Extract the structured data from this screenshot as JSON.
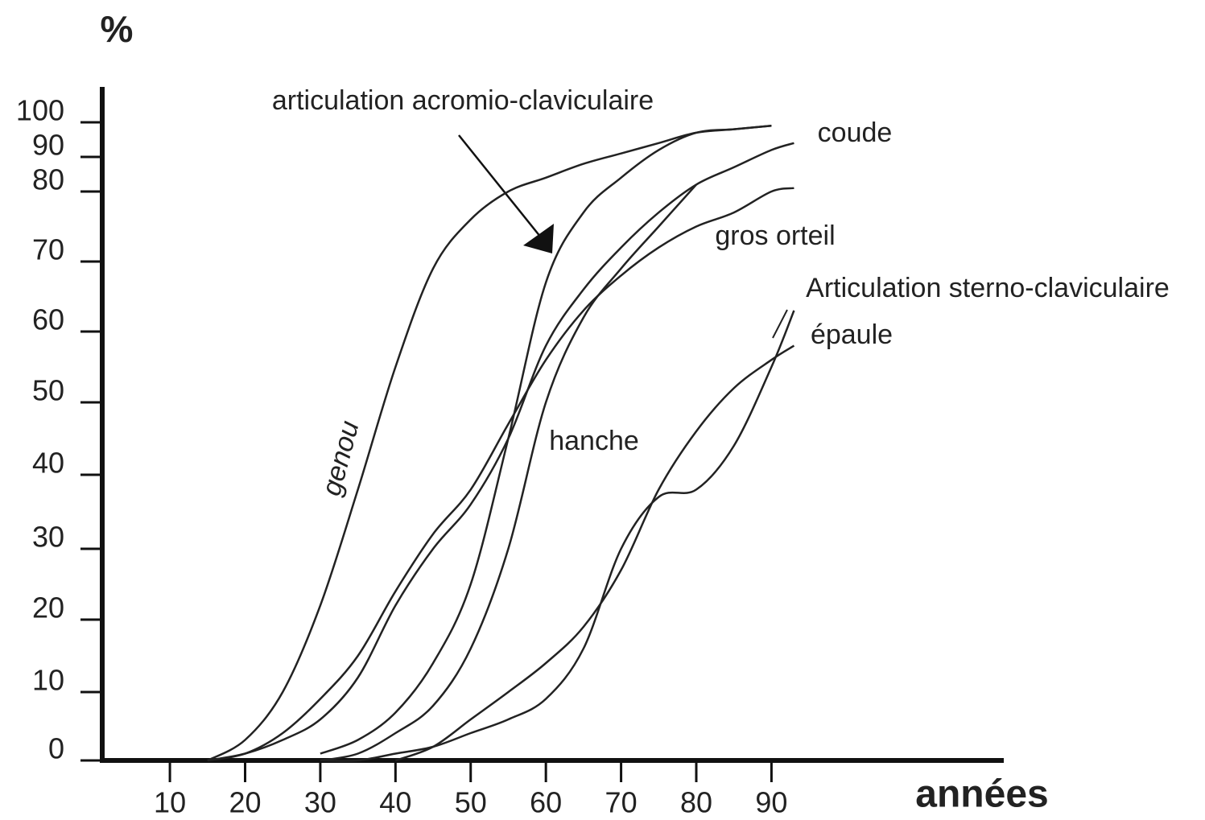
{
  "chart_data": {
    "type": "line",
    "ylabel": "%",
    "xlabel": "années",
    "x": [
      15,
      20,
      25,
      30,
      35,
      40,
      45,
      50,
      55,
      60,
      65,
      70,
      75,
      80,
      85,
      90,
      93
    ],
    "series": [
      {
        "name": "genou",
        "color": "#222222",
        "values": [
          0,
          3,
          10,
          22,
          38,
          55,
          69,
          76,
          80,
          84,
          88,
          91,
          94,
          97,
          98,
          99,
          null
        ]
      },
      {
        "name": "articulation acromio-claviculaire",
        "color": "#222222",
        "values": [
          null,
          null,
          null,
          1,
          3,
          7,
          14,
          25,
          45,
          67,
          77,
          84,
          92,
          97,
          98,
          99,
          null
        ]
      },
      {
        "name": "coude",
        "color": "#222222",
        "values": [
          0,
          1,
          3,
          6,
          12,
          22,
          30,
          36,
          45,
          58,
          66,
          72,
          77,
          82,
          87,
          92,
          94
        ]
      },
      {
        "name": "gros orteil",
        "color": "#222222",
        "values": [
          0,
          1,
          4,
          9,
          15,
          24,
          32,
          38,
          47,
          56,
          63,
          68,
          72,
          75,
          77,
          80,
          81
        ]
      },
      {
        "name": "hanche",
        "color": "#222222",
        "values": [
          null,
          null,
          null,
          0,
          1,
          4,
          8,
          16,
          30,
          50,
          62,
          69,
          75,
          82,
          null,
          null,
          null
        ]
      },
      {
        "name": "Articulation sterno-claviculaire",
        "color": "#222222",
        "values": [
          null,
          null,
          null,
          0,
          0,
          1,
          2,
          4,
          6,
          9,
          16,
          30,
          37,
          38,
          44,
          55,
          63
        ]
      },
      {
        "name": "épaule",
        "color": "#222222",
        "values": [
          null,
          null,
          null,
          null,
          null,
          0,
          2,
          6,
          10,
          14,
          19,
          27,
          38,
          46,
          52,
          56,
          58
        ]
      }
    ],
    "xlim": [
      1,
      121
    ],
    "xticks": [
      10,
      20,
      30,
      40,
      50,
      60,
      70,
      80,
      90
    ],
    "ylim": [
      0,
      100
    ],
    "yticks": [
      0,
      10,
      20,
      30,
      40,
      50,
      60,
      70,
      80,
      90,
      100
    ],
    "grid": false
  }
}
